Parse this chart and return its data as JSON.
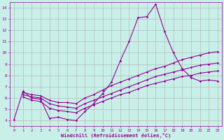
{
  "xlabel": "Windchill (Refroidissement éolien,°C)",
  "background_color": "#c8f0e8",
  "line_color": "#990099",
  "grid_color": "#b0b0b0",
  "xlim": [
    -0.5,
    23.5
  ],
  "ylim": [
    3.5,
    14.5
  ],
  "xticks": [
    0,
    1,
    2,
    3,
    4,
    5,
    6,
    7,
    8,
    9,
    10,
    11,
    12,
    13,
    14,
    15,
    16,
    17,
    18,
    19,
    20,
    21,
    22,
    23
  ],
  "yticks": [
    4,
    5,
    6,
    7,
    8,
    9,
    10,
    11,
    12,
    13,
    14
  ],
  "series": {
    "line1_x": [
      0,
      1,
      2,
      3,
      4,
      5,
      6,
      7,
      8,
      9,
      10,
      11,
      12,
      13,
      14,
      15,
      16,
      17,
      18,
      19,
      20,
      21,
      22,
      23
    ],
    "line1_y": [
      4.1,
      6.6,
      6.0,
      5.9,
      4.2,
      4.3,
      4.1,
      4.0,
      4.8,
      5.5,
      6.4,
      7.4,
      9.3,
      11.0,
      13.1,
      13.2,
      14.3,
      11.9,
      10.0,
      8.6,
      7.8,
      7.5,
      7.6,
      7.5
    ],
    "line2_x": [
      1,
      2,
      3,
      4,
      5,
      6,
      7,
      8,
      9,
      10,
      11,
      12,
      13,
      14,
      15,
      16,
      17,
      18,
      19,
      20,
      21,
      22,
      23
    ],
    "line2_y": [
      6.5,
      6.3,
      6.2,
      5.8,
      5.6,
      5.6,
      5.5,
      6.0,
      6.3,
      6.7,
      7.1,
      7.4,
      7.7,
      8.0,
      8.3,
      8.6,
      8.8,
      9.1,
      9.4,
      9.6,
      9.8,
      10.0,
      10.1
    ],
    "line3_x": [
      1,
      2,
      3,
      4,
      5,
      6,
      7,
      8,
      9,
      10,
      11,
      12,
      13,
      14,
      15,
      16,
      17,
      18,
      19,
      20,
      21,
      22,
      23
    ],
    "line3_y": [
      6.3,
      6.1,
      6.0,
      5.5,
      5.3,
      5.2,
      5.1,
      5.5,
      5.8,
      6.1,
      6.4,
      6.7,
      7.0,
      7.3,
      7.6,
      7.9,
      8.1,
      8.3,
      8.5,
      8.7,
      8.9,
      9.0,
      9.1
    ],
    "line4_x": [
      1,
      2,
      3,
      4,
      5,
      6,
      7,
      8,
      9,
      10,
      11,
      12,
      13,
      14,
      15,
      16,
      17,
      18,
      19,
      20,
      21,
      22,
      23
    ],
    "line4_y": [
      6.1,
      5.8,
      5.7,
      5.1,
      4.9,
      4.8,
      4.7,
      5.1,
      5.4,
      5.7,
      6.0,
      6.3,
      6.5,
      6.8,
      7.1,
      7.3,
      7.5,
      7.7,
      7.9,
      8.0,
      8.2,
      8.3,
      8.4
    ]
  }
}
